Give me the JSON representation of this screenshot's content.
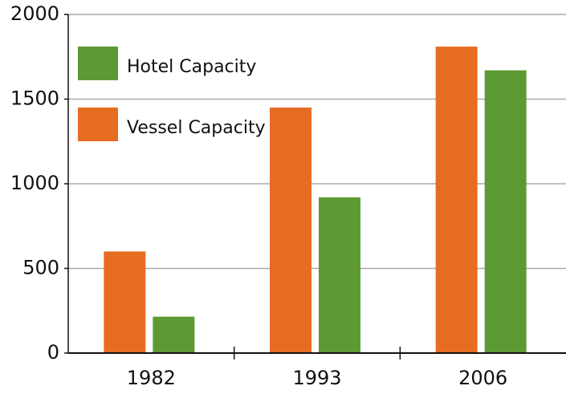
{
  "chart_data": {
    "type": "bar",
    "categories": [
      "1982",
      "1993",
      "2006"
    ],
    "series": [
      {
        "name": "Vessel Capacity",
        "color": "#e66c22",
        "values": [
          600,
          1450,
          1810
        ]
      },
      {
        "name": "Hotel Capacity",
        "color": "#5e9a34",
        "values": [
          215,
          920,
          1670
        ]
      }
    ],
    "ylim": [
      0,
      2000
    ],
    "yticks": [
      0,
      500,
      1000,
      1500,
      2000
    ],
    "grid": true
  }
}
